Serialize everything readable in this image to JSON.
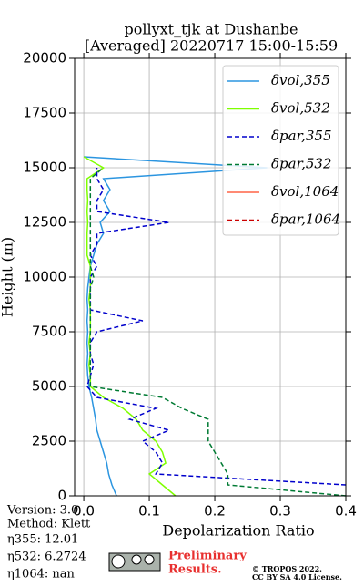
{
  "chart_data": {
    "type": "line",
    "title": [
      "pollyxt_tjk at Dushanbe",
      "[Averaged] 20220717 15:00-15:59"
    ],
    "x_label": "Depolarization Ratio",
    "y_label": "Height (m)",
    "y": [
      0,
      500,
      1000,
      1500,
      2000,
      2500,
      3000,
      3500,
      4000,
      4500,
      5000,
      5500,
      6000,
      6500,
      7000,
      7500,
      8000,
      8500,
      9000,
      9500,
      10000,
      10500,
      11000,
      11500,
      12000,
      12500,
      13000,
      13500,
      14000,
      14500,
      15000,
      15500
    ],
    "series": [
      {
        "name": "δvol,355",
        "color": "#2b95e0",
        "dash": false,
        "values": [
          0.05,
          0.043,
          0.038,
          0.035,
          0.03,
          0.025,
          0.02,
          0.018,
          0.015,
          0.012,
          0.008,
          0.006,
          0.005,
          0.006,
          0.005,
          0.006,
          0.005,
          0.006,
          0.005,
          0.006,
          0.008,
          0.01,
          0.015,
          0.02,
          0.03,
          0.025,
          0.04,
          0.03,
          0.04,
          0.03,
          0.28,
          0.0
        ]
      },
      {
        "name": "δvol,532",
        "color": "#7fff00",
        "dash": false,
        "values": [
          0.14,
          0.12,
          0.1,
          0.125,
          0.12,
          0.11,
          0.09,
          0.08,
          0.06,
          0.03,
          0.01,
          0.01,
          0.008,
          0.01,
          0.008,
          0.01,
          0.01,
          0.01,
          0.008,
          0.01,
          0.01,
          0.01,
          0.005,
          0.005,
          0.005,
          0.006,
          0.005,
          0.006,
          0.005,
          0.005,
          0.03,
          0.0
        ]
      },
      {
        "name": "δpar,355",
        "color": "#0000cc",
        "dash": true,
        "values": [
          null,
          0.4,
          0.11,
          0.12,
          0.11,
          0.09,
          0.13,
          0.07,
          0.11,
          0.02,
          0.005,
          0.01,
          0.015,
          0.01,
          0.01,
          0.02,
          0.09,
          0.01,
          0.01,
          0.01,
          0.01,
          0.02,
          0.01,
          0.02,
          0.02,
          0.13,
          0.02,
          0.02,
          0.03,
          0.02,
          0.02,
          null
        ]
      },
      {
        "name": "δpar,532",
        "color": "#007a33",
        "dash": true,
        "values": [
          0.4,
          0.22,
          0.22,
          0.21,
          0.2,
          0.19,
          0.19,
          0.19,
          0.15,
          0.12,
          0.01,
          0.01,
          0.01,
          0.01,
          0.01,
          0.01,
          0.01,
          0.01,
          0.01,
          0.01,
          0.015,
          0.01,
          0.01,
          0.01,
          0.01,
          0.01,
          0.01,
          0.01,
          0.01,
          0.01,
          0.03,
          null
        ]
      },
      {
        "name": "δvol,1064",
        "color": "#ff6347",
        "dash": false,
        "values": [
          null,
          null,
          null,
          null,
          null,
          null,
          null,
          null,
          null,
          null,
          null,
          null,
          null,
          null,
          null,
          null,
          null,
          null,
          null,
          null,
          null,
          null,
          null,
          null,
          null,
          null,
          null,
          null,
          null,
          null,
          null,
          null
        ]
      },
      {
        "name": "δpar,1064",
        "color": "#cc0000",
        "dash": true,
        "values": [
          null,
          null,
          null,
          null,
          null,
          null,
          null,
          null,
          null,
          null,
          null,
          null,
          null,
          null,
          null,
          null,
          null,
          null,
          null,
          null,
          null,
          null,
          null,
          null,
          null,
          null,
          null,
          null,
          null,
          null,
          null,
          null
        ]
      }
    ],
    "xlim": [
      -0.014,
      0.4
    ],
    "xticks": [
      {
        "value": 0,
        "label": "0.0"
      },
      0.1,
      0.2,
      0.3,
      0.4
    ],
    "ylim": [
      0,
      20000
    ],
    "yticks": [
      0,
      2500,
      5000,
      7500,
      10000,
      12500,
      15000,
      17500,
      20000
    ],
    "grid": true,
    "legend": "upper right",
    "annotations": [
      "Version: 3.0",
      "Method: Klett",
      "η355:  12.01",
      "η532: 6.2724",
      "η1064:    nan"
    ],
    "notice": [
      "Preliminary",
      "Results."
    ],
    "license": [
      "© TROPOS 2022.",
      "CC BY SA 4.0 License."
    ]
  }
}
